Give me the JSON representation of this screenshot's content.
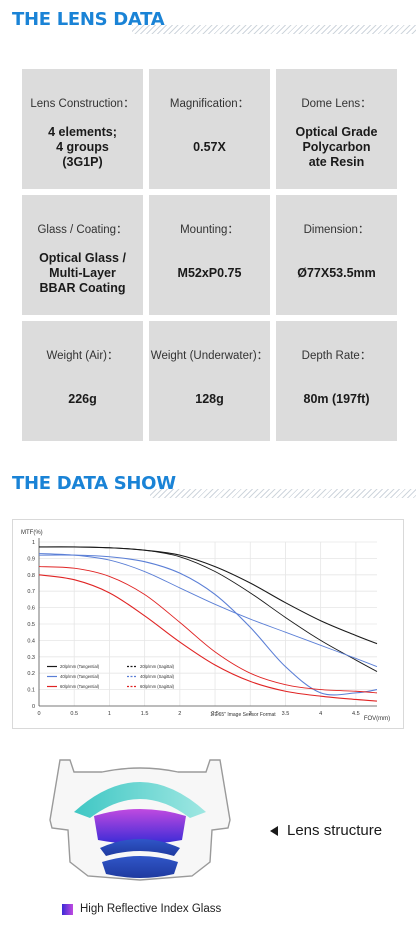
{
  "sections": {
    "lens_data_title": "THE LENS DATA",
    "data_show_title": "THE DATA SHOW"
  },
  "specs": [
    {
      "label": "Lens Construction：",
      "value": "4 elements;\n4 groups\n(3G1P)"
    },
    {
      "label": "Magnification：",
      "value": "0.57X"
    },
    {
      "label": "Dome Lens：",
      "value": "Optical Grade\nPolycarbon\nate Resin"
    },
    {
      "label": "Glass / Coating：",
      "value": "Optical Glass /\nMulti-Layer\nBBAR Coating"
    },
    {
      "label": "Mounting：",
      "value": "M52xP0.75"
    },
    {
      "label": "Dimension：",
      "value": "Ø77X53.5mm"
    },
    {
      "label": "Weight (Air)：",
      "value": "226g"
    },
    {
      "label": "Weight (Underwater)：",
      "value": "128g"
    },
    {
      "label": "Depth Rate：",
      "value": "80m (197ft)"
    }
  ],
  "chart_data": {
    "type": "line",
    "title": "",
    "ylabel": "MTF(%)",
    "xlabel": "FOV(mm)",
    "subtitle": "1/1.65\" Image Sensor Format",
    "xlim": [
      0,
      4.8
    ],
    "ylim": [
      0,
      1
    ],
    "x_ticks": [
      "0",
      "0.5",
      "1",
      "1.5",
      "2",
      "2.5",
      "3",
      "3.5",
      "4",
      "4.5"
    ],
    "y_ticks": [
      "0",
      "0.1",
      "0.2",
      "0.3",
      "0.4",
      "0.5",
      "0.6",
      "0.7",
      "0.8",
      "0.9",
      "1"
    ],
    "grid": true,
    "legend_position": "bottom-left",
    "series": [
      {
        "name": "20lp/mm (Tangential)",
        "color": "#1a1a1a",
        "dash": "solid",
        "x": [
          0,
          0.5,
          1,
          1.5,
          2,
          2.5,
          3,
          3.5,
          4,
          4.5,
          4.8
        ],
        "y": [
          0.97,
          0.97,
          0.965,
          0.95,
          0.92,
          0.85,
          0.75,
          0.63,
          0.52,
          0.43,
          0.38
        ]
      },
      {
        "name": "20lp/mm (Sagittal)",
        "color": "#1a1a1a",
        "dash": "dashed",
        "x": [
          0,
          0.5,
          1,
          1.5,
          2,
          2.5,
          3,
          3.5,
          4,
          4.5,
          4.8
        ],
        "y": [
          0.97,
          0.97,
          0.965,
          0.95,
          0.91,
          0.82,
          0.69,
          0.54,
          0.4,
          0.28,
          0.21
        ]
      },
      {
        "name": "40lp/mm (Tangential)",
        "color": "#5b7fd6",
        "dash": "solid",
        "x": [
          0,
          0.5,
          1,
          1.5,
          2,
          2.5,
          3,
          3.5,
          4,
          4.5,
          4.8
        ],
        "y": [
          0.92,
          0.92,
          0.91,
          0.88,
          0.81,
          0.68,
          0.48,
          0.24,
          0.08,
          0.08,
          0.1
        ]
      },
      {
        "name": "40lp/mm (Sagittal)",
        "color": "#5b7fd6",
        "dash": "dashed",
        "x": [
          0,
          0.5,
          1,
          1.5,
          2,
          2.5,
          3,
          3.5,
          4,
          4.5,
          4.8
        ],
        "y": [
          0.93,
          0.92,
          0.89,
          0.82,
          0.72,
          0.62,
          0.53,
          0.45,
          0.37,
          0.29,
          0.24
        ]
      },
      {
        "name": "60lp/mm (Tangential)",
        "color": "#e02424",
        "dash": "solid",
        "x": [
          0,
          0.5,
          1,
          1.5,
          2,
          2.5,
          3,
          3.5,
          4,
          4.5,
          4.8
        ],
        "y": [
          0.8,
          0.77,
          0.69,
          0.55,
          0.39,
          0.25,
          0.15,
          0.09,
          0.06,
          0.04,
          0.03
        ]
      },
      {
        "name": "60lp/mm (Sagittal)",
        "color": "#e02424",
        "dash": "dashed",
        "x": [
          0,
          0.5,
          1,
          1.5,
          2,
          2.5,
          3,
          3.5,
          4,
          4.5,
          4.8
        ],
        "y": [
          0.85,
          0.84,
          0.79,
          0.68,
          0.51,
          0.33,
          0.2,
          0.13,
          0.1,
          0.09,
          0.08
        ]
      }
    ]
  },
  "structure": {
    "caption": "Lens structure",
    "legend": "High Reflective Index Glass"
  }
}
